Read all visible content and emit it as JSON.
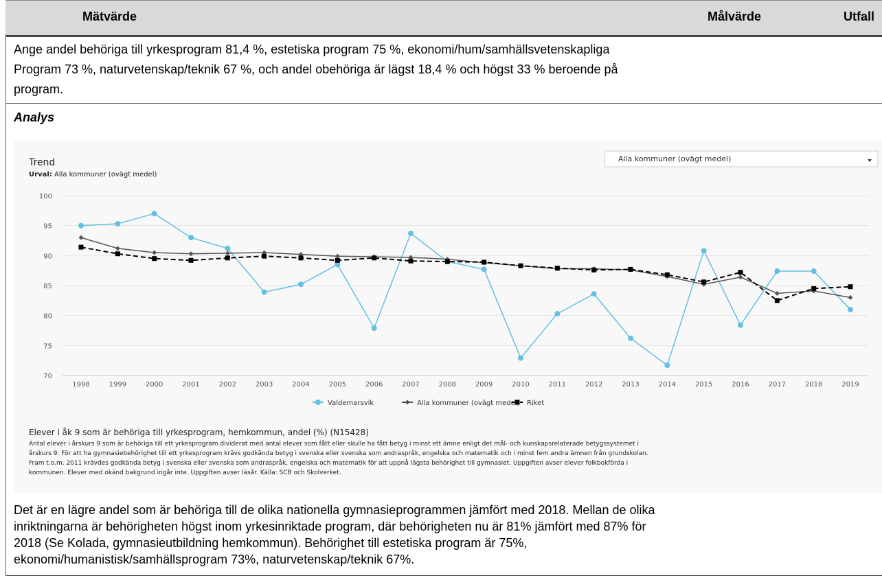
{
  "header": {
    "measure": "Mätvärde",
    "target": "Målvärde",
    "outcome": "Utfall"
  },
  "target_text": {
    "lines": [
      "Ange andel behöriga till yrkesprogram 81,4 %, estetiska program 75 %, ekonomi/hum/samhällsvetenskapliga",
      "Program 73 %, naturvetenskap/teknik 67 %, och andel obehöriga är lägst 18,4 % och högst 33 % beroende på",
      "program."
    ]
  },
  "analysis": {
    "heading": "Analys"
  },
  "chart_data": {
    "type": "line",
    "title": "Trend",
    "subtitle_label": "Urval:",
    "subtitle_value": "Alla kommuner (ovägt medel)",
    "dropdown": "Alla kommuner (ovägt medel)",
    "categories": [
      "1998",
      "1999",
      "2000",
      "2001",
      "2002",
      "2003",
      "2004",
      "2005",
      "2006",
      "2007",
      "2008",
      "2009",
      "2010",
      "2011",
      "2012",
      "2013",
      "2014",
      "2015",
      "2016",
      "2017",
      "2018",
      "2019"
    ],
    "ylim": [
      70,
      100
    ],
    "yticks": [
      70,
      75,
      80,
      85,
      90,
      95,
      100
    ],
    "grid": true,
    "series": [
      {
        "name": "Valdemarsvik",
        "color": "#64bfe3",
        "marker": "circle",
        "dashed": false,
        "values": [
          95.0,
          95.3,
          97.0,
          93.0,
          91.2,
          83.9,
          85.2,
          88.5,
          77.9,
          93.7,
          89.0,
          87.7,
          72.9,
          80.3,
          83.6,
          76.2,
          71.7,
          90.8,
          78.4,
          87.4,
          87.4,
          81.0
        ]
      },
      {
        "name": "Alla kommuner (ovägt medel)",
        "color": "#555555",
        "marker": "diamond",
        "dashed": false,
        "values": [
          93.0,
          91.2,
          90.5,
          90.3,
          90.4,
          90.5,
          90.2,
          89.9,
          89.8,
          89.7,
          89.4,
          88.8,
          88.3,
          87.8,
          87.8,
          87.6,
          86.5,
          85.2,
          86.4,
          83.7,
          84.1,
          83.0
        ]
      },
      {
        "name": "Riket",
        "color": "#000000",
        "marker": "square",
        "dashed": true,
        "values": [
          91.4,
          90.3,
          89.5,
          89.2,
          89.6,
          89.9,
          89.6,
          89.2,
          89.6,
          89.1,
          89.0,
          88.9,
          88.3,
          87.9,
          87.6,
          87.7,
          86.8,
          85.6,
          87.2,
          82.5,
          84.5,
          84.8
        ]
      }
    ],
    "caption_title": "Elever i åk 9 som är behöriga till yrkesprogram, hemkommun, andel (%) (N15428)",
    "caption_lines": [
      "Antal elever i årskurs 9 som är behöriga till ett yrkesprogram dividerat med antal elever som fått eller skulle ha fått betyg i minst ett ämne enligt det mål- och kunskapsrelaterade betygssystemet i",
      "årskurs 9. För att ha gymnasiebehörighet till ett yrkesprogram krävs godkända betyg i svenska eller svenska som andraspråk, engelska och matematik och i minst fem andra ämnen från grundskolan.",
      "Fram t.o.m. 2011 krävdes godkända betyg i svenska eller svenska som andraspråk, engelska och matematik för att uppnå lägsta behörighet till gymnasiet. Uppgiften avser elever folkbokförda i",
      "kommunen. Elever med okänd bakgrund ingår inte. Uppgiften avser läsår. Källa: SCB och Skolverket."
    ]
  },
  "outcome_text": {
    "lines": [
      "Det är en lägre andel som är behöriga till de olika nationella gymnasieprogrammen jämfört med 2018. Mellan de olika",
      "inriktningarna är behörigheten högst inom yrkesinriktade program, där behörigheten nu är 81% jämfört med 87% för",
      "2018 (Se Kolada, gymnasieutbildning hemkommun). Behörighet till estetiska program är 75%,",
      "ekonomi/humanistisk/samhällsprogram 73%, naturvetenskap/teknik 67%."
    ]
  }
}
